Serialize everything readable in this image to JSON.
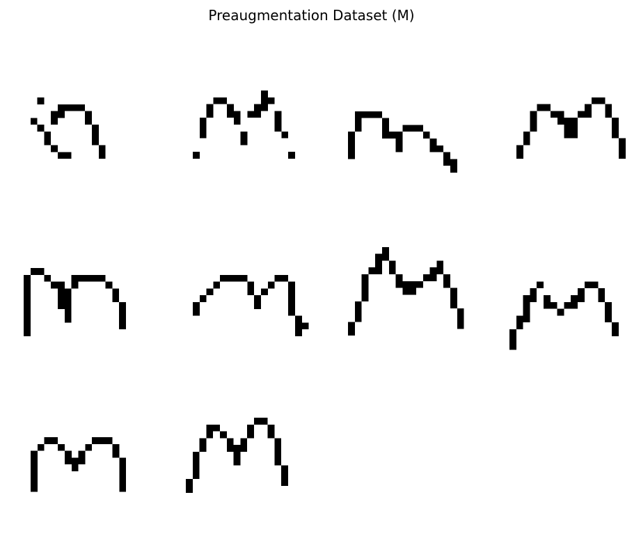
{
  "figure": {
    "title": "Preaugmentation Dataset (M)",
    "pixel_color": "#000000",
    "background": "#ffffff"
  },
  "samples": [
    [
      [
        0,
        1,
        0,
        1
      ],
      [
        2,
        0,
        1,
        1
      ],
      [
        1,
        3,
        1,
        1
      ],
      [
        2,
        4,
        1,
        1
      ],
      [
        3,
        5,
        1,
        2
      ],
      [
        4,
        7,
        1,
        1
      ],
      [
        5,
        1,
        1,
        2
      ],
      [
        4,
        2,
        1,
        2
      ],
      [
        5,
        8,
        2,
        1
      ],
      [
        6,
        1,
        3,
        1
      ],
      [
        9,
        2,
        1,
        2
      ],
      [
        10,
        4,
        1,
        3
      ],
      [
        11,
        7,
        1,
        2
      ]
    ],
    [
      [
        0,
        9,
        1,
        1
      ],
      [
        1,
        4,
        1,
        3
      ],
      [
        2,
        2,
        1,
        2
      ],
      [
        3,
        1,
        2,
        1
      ],
      [
        5,
        2,
        1,
        1
      ],
      [
        5,
        3,
        1,
        1
      ],
      [
        6,
        3,
        1,
        2
      ],
      [
        7,
        6,
        1,
        2
      ],
      [
        8,
        3,
        2,
        1
      ],
      [
        9,
        2,
        2,
        1
      ],
      [
        10,
        0,
        1,
        2
      ],
      [
        11,
        1,
        1,
        1
      ],
      [
        12,
        3,
        1,
        2
      ],
      [
        12,
        5,
        1,
        1
      ],
      [
        13,
        6,
        1,
        1
      ],
      [
        14,
        9,
        1,
        1
      ]
    ],
    [
      [
        0,
        4,
        1,
        2
      ],
      [
        0,
        6,
        1,
        2
      ],
      [
        1,
        1,
        1,
        3
      ],
      [
        2,
        1,
        1,
        1
      ],
      [
        3,
        1,
        2,
        1
      ],
      [
        5,
        2,
        1,
        3
      ],
      [
        6,
        4,
        2,
        1
      ],
      [
        8,
        3,
        1,
        1
      ],
      [
        9,
        3,
        2,
        1
      ],
      [
        11,
        4,
        1,
        1
      ],
      [
        12,
        5,
        1,
        2
      ],
      [
        7,
        5,
        1,
        2
      ],
      [
        13,
        6,
        1,
        1
      ],
      [
        14,
        7,
        1,
        2
      ],
      [
        15,
        8,
        1,
        2
      ]
    ],
    [
      [
        0,
        8,
        1,
        2
      ],
      [
        1,
        6,
        1,
        2
      ],
      [
        2,
        3,
        1,
        3
      ],
      [
        3,
        2,
        1,
        1
      ],
      [
        4,
        2,
        1,
        1
      ],
      [
        5,
        3,
        2,
        1
      ],
      [
        6,
        4,
        2,
        1
      ],
      [
        7,
        5,
        2,
        2
      ],
      [
        8,
        4,
        1,
        1
      ],
      [
        9,
        3,
        1,
        1
      ],
      [
        10,
        2,
        1,
        2
      ],
      [
        11,
        1,
        2,
        1
      ],
      [
        13,
        2,
        1,
        2
      ],
      [
        14,
        4,
        1,
        3
      ],
      [
        15,
        7,
        1,
        3
      ]
    ],
    [
      [
        0,
        1,
        1,
        9
      ],
      [
        1,
        0,
        1,
        1
      ],
      [
        2,
        0,
        1,
        1
      ],
      [
        3,
        1,
        1,
        1
      ],
      [
        4,
        2,
        1,
        1
      ],
      [
        5,
        2,
        1,
        2
      ],
      [
        5,
        4,
        1,
        2
      ],
      [
        6,
        3,
        1,
        5
      ],
      [
        7,
        1,
        1,
        2
      ],
      [
        8,
        1,
        3,
        1
      ],
      [
        11,
        1,
        1,
        1
      ],
      [
        12,
        2,
        1,
        1
      ],
      [
        13,
        3,
        1,
        2
      ],
      [
        14,
        5,
        1,
        4
      ]
    ],
    [
      [
        0,
        5,
        1,
        2
      ],
      [
        1,
        4,
        1,
        1
      ],
      [
        2,
        3,
        1,
        1
      ],
      [
        3,
        2,
        1,
        1
      ],
      [
        4,
        1,
        1,
        1
      ],
      [
        5,
        1,
        2,
        1
      ],
      [
        7,
        1,
        1,
        1
      ],
      [
        8,
        2,
        1,
        2
      ],
      [
        9,
        4,
        1,
        2
      ],
      [
        10,
        3,
        1,
        1
      ],
      [
        11,
        2,
        1,
        1
      ],
      [
        12,
        1,
        2,
        1
      ],
      [
        14,
        2,
        1,
        5
      ],
      [
        15,
        7,
        1,
        3
      ],
      [
        16,
        8,
        1,
        1
      ]
    ],
    [
      [
        0,
        12,
        1,
        2
      ],
      [
        1,
        9,
        1,
        3
      ],
      [
        2,
        5,
        1,
        4
      ],
      [
        3,
        4,
        1,
        1
      ],
      [
        4,
        2,
        1,
        3
      ],
      [
        5,
        1,
        1,
        2
      ],
      [
        6,
        3,
        1,
        2
      ],
      [
        7,
        5,
        1,
        2
      ],
      [
        8,
        6,
        2,
        2
      ],
      [
        10,
        6,
        1,
        1
      ],
      [
        11,
        5,
        1,
        1
      ],
      [
        12,
        4,
        1,
        2
      ],
      [
        13,
        3,
        1,
        2
      ],
      [
        14,
        5,
        1,
        2
      ],
      [
        15,
        7,
        1,
        3
      ],
      [
        16,
        10,
        1,
        3
      ]
    ],
    [
      [
        0,
        10,
        1,
        3
      ],
      [
        1,
        8,
        1,
        2
      ],
      [
        2,
        5,
        1,
        4
      ],
      [
        3,
        4,
        1,
        2
      ],
      [
        4,
        3,
        1,
        1
      ],
      [
        5,
        5,
        1,
        2
      ],
      [
        6,
        6,
        1,
        1
      ],
      [
        7,
        7,
        1,
        1
      ],
      [
        8,
        6,
        1,
        1
      ],
      [
        9,
        5,
        1,
        2
      ],
      [
        10,
        4,
        1,
        2
      ],
      [
        11,
        3,
        2,
        1
      ],
      [
        13,
        4,
        1,
        2
      ],
      [
        14,
        6,
        1,
        3
      ],
      [
        15,
        9,
        1,
        2
      ]
    ],
    [
      [
        0,
        2,
        1,
        6
      ],
      [
        1,
        1,
        1,
        1
      ],
      [
        2,
        0,
        1,
        1
      ],
      [
        3,
        0,
        1,
        1
      ],
      [
        4,
        1,
        1,
        1
      ],
      [
        5,
        2,
        1,
        2
      ],
      [
        6,
        3,
        1,
        2
      ],
      [
        7,
        2,
        1,
        2
      ],
      [
        8,
        1,
        1,
        1
      ],
      [
        9,
        0,
        2,
        1
      ],
      [
        11,
        0,
        1,
        1
      ],
      [
        12,
        1,
        1,
        2
      ],
      [
        13,
        3,
        1,
        5
      ]
    ],
    [
      [
        0,
        9,
        1,
        2
      ],
      [
        1,
        5,
        1,
        4
      ],
      [
        2,
        3,
        1,
        2
      ],
      [
        3,
        1,
        1,
        2
      ],
      [
        4,
        1,
        1,
        1
      ],
      [
        5,
        2,
        1,
        1
      ],
      [
        6,
        3,
        1,
        2
      ],
      [
        7,
        4,
        1,
        3
      ],
      [
        8,
        3,
        1,
        2
      ],
      [
        9,
        1,
        1,
        2
      ],
      [
        10,
        0,
        2,
        1
      ],
      [
        12,
        1,
        1,
        2
      ],
      [
        13,
        3,
        1,
        4
      ],
      [
        14,
        7,
        1,
        3
      ]
    ]
  ]
}
